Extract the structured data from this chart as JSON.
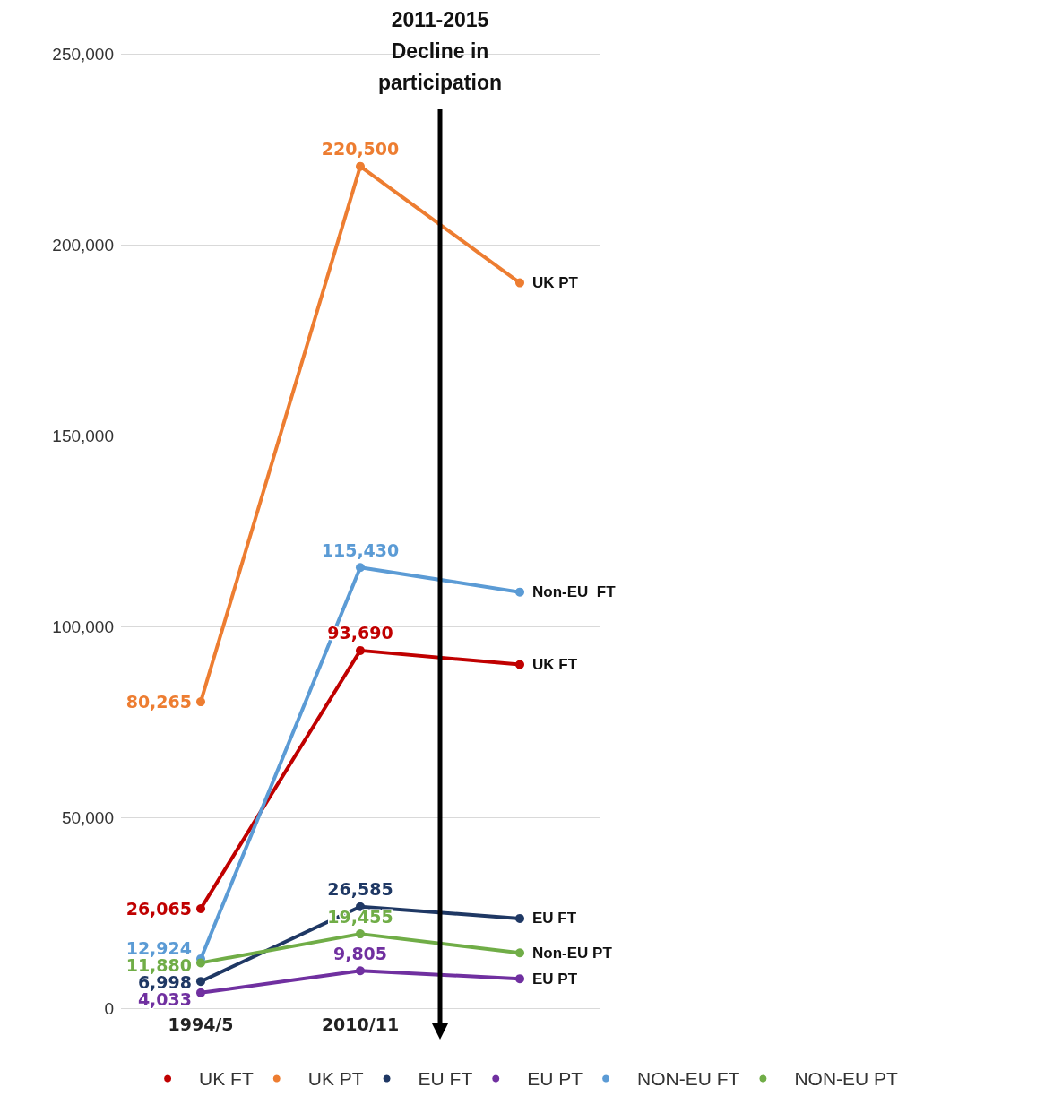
{
  "chart_data": {
    "type": "line",
    "title": "2011-2015\nDecline in\nparticipation",
    "categories": [
      "1994/5",
      "2010/11",
      null
    ],
    "series": [
      {
        "name": "UK FT",
        "color": "#c00000",
        "values": [
          26065,
          93690,
          90000
        ],
        "value_labels": [
          "26,065",
          "93,690",
          null
        ]
      },
      {
        "name": "UK PT",
        "color": "#ed7d31",
        "values": [
          80265,
          220500,
          190000
        ],
        "value_labels": [
          "80,265",
          "220,500",
          null
        ]
      },
      {
        "name": "EU FT",
        "color": "#1f3864",
        "values": [
          6998,
          26585,
          23500
        ],
        "value_labels": [
          "6,998",
          "26,585",
          null
        ]
      },
      {
        "name": "EU PT",
        "color": "#7030a0",
        "values": [
          4033,
          9805,
          7700
        ],
        "value_labels": [
          "4,033",
          "9,805",
          null
        ]
      },
      {
        "name": "NON-EU FT",
        "color": "#5b9bd5",
        "values": [
          12924,
          115430,
          109000
        ],
        "value_labels": [
          "12,924",
          "115,430",
          null
        ]
      },
      {
        "name": "NON-EU PT",
        "color": "#70ad47",
        "values": [
          11880,
          19455,
          14500
        ],
        "value_labels": [
          "11,880",
          "19,455",
          null
        ]
      }
    ],
    "annotations": [
      "UK FT",
      "UK PT",
      "EU FT",
      "EU PT",
      "Non-EU  FT",
      "Non-EU PT"
    ],
    "ylim": [
      0,
      250000
    ],
    "yticks": [
      0,
      {
        "value": 50000,
        "label": "50,000"
      },
      {
        "value": 100000,
        "label": "100,000"
      },
      {
        "value": 150000,
        "label": "150,000"
      },
      {
        "value": 200000,
        "label": "200,000"
      },
      {
        "value": 250000,
        "label": "250,000"
      }
    ],
    "grid": "y",
    "legend": "bottom",
    "marker": "circle",
    "line_style": "solid"
  }
}
